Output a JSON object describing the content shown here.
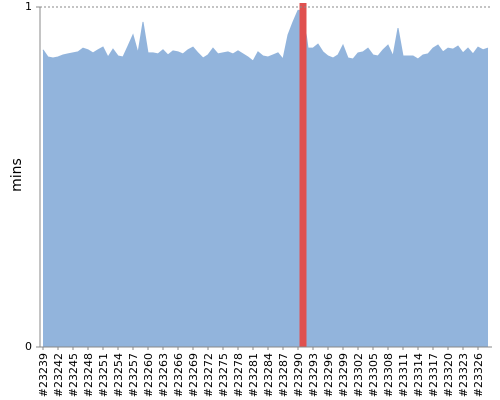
{
  "chart_data": {
    "type": "area",
    "y_label": "mins",
    "categories": [
      "#23239",
      null,
      null,
      "#23242",
      null,
      null,
      "#23245",
      null,
      null,
      "#23248",
      null,
      null,
      "#23251",
      null,
      null,
      "#23254",
      null,
      null,
      "#23257",
      null,
      null,
      "#23260",
      null,
      null,
      "#23263",
      null,
      null,
      "#23266",
      null,
      null,
      "#23269",
      null,
      null,
      "#23272",
      null,
      null,
      "#23275",
      null,
      null,
      "#23278",
      null,
      null,
      "#23281",
      null,
      null,
      "#23284",
      null,
      null,
      "#23287",
      null,
      null,
      "#23290",
      null,
      null,
      "#23293",
      null,
      null,
      "#23296",
      null,
      null,
      "#23299",
      null,
      null,
      "#23302",
      null,
      null,
      "#23305",
      null,
      null,
      "#23308",
      null,
      null,
      "#23311",
      null,
      null,
      "#23314",
      null,
      null,
      "#23317",
      null,
      null,
      "#23320",
      null,
      null,
      "#23323",
      null,
      null,
      "#23326",
      null,
      null
    ],
    "values": [
      0.874,
      0.853,
      0.85,
      0.853,
      0.859,
      0.862,
      0.865,
      0.868,
      0.879,
      0.874,
      0.865,
      0.874,
      0.882,
      0.853,
      0.876,
      0.856,
      0.853,
      0.885,
      0.918,
      0.865,
      0.956,
      0.865,
      0.865,
      0.862,
      0.874,
      0.859,
      0.871,
      0.868,
      0.862,
      0.874,
      0.882,
      0.865,
      0.85,
      0.859,
      0.879,
      0.862,
      0.865,
      0.868,
      0.862,
      0.871,
      0.862,
      0.853,
      0.841,
      0.868,
      0.856,
      0.853,
      0.859,
      0.865,
      0.847,
      0.918,
      0.956,
      0.99,
      0.99,
      0.879,
      0.879,
      0.891,
      0.868,
      0.856,
      0.85,
      0.859,
      0.888,
      0.85,
      0.847,
      0.865,
      0.868,
      0.879,
      0.859,
      0.856,
      0.874,
      0.888,
      0.856,
      0.938,
      0.856,
      0.856,
      0.856,
      0.847,
      0.859,
      0.862,
      0.879,
      0.888,
      0.868,
      0.879,
      0.876,
      0.885,
      0.865,
      0.879,
      0.862,
      0.882,
      0.874,
      0.879
    ],
    "color": "#92b4dc",
    "highlight_index": 52,
    "highlight_color": "#e0504f",
    "ylim": [
      0,
      1
    ],
    "yticks": [
      0,
      1
    ],
    "top_grid": true
  }
}
